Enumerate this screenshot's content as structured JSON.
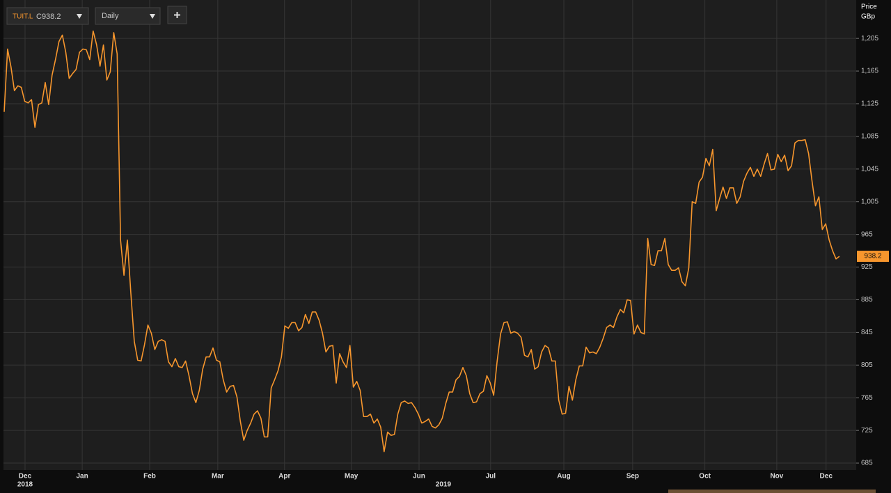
{
  "chart_data": {
    "type": "line",
    "symbol": "TUIT.L",
    "last_label": "C938.2",
    "interval": "Daily",
    "axis_title": "Price",
    "axis_unit": "GBp",
    "series": [
      {
        "name": "TUIT.L",
        "color": "#f7962d",
        "values": [
          1115,
          1192,
          1170,
          1141,
          1147,
          1145,
          1128,
          1126,
          1130,
          1096,
          1124,
          1126,
          1151,
          1124,
          1160,
          1179,
          1201,
          1209,
          1188,
          1156,
          1162,
          1167,
          1188,
          1192,
          1191,
          1179,
          1214,
          1197,
          1171,
          1197,
          1154,
          1164,
          1212,
          1186,
          958,
          915,
          958,
          894,
          834,
          811,
          810,
          830,
          854,
          844,
          824,
          834,
          836,
          834,
          809,
          803,
          813,
          803,
          802,
          810,
          792,
          770,
          759,
          774,
          800,
          815,
          815,
          826,
          811,
          809,
          787,
          772,
          779,
          780,
          766,
          736,
          713,
          725,
          734,
          745,
          749,
          740,
          717,
          717,
          777,
          787,
          798,
          815,
          853,
          850,
          857,
          857,
          847,
          851,
          867,
          856,
          870,
          870,
          860,
          844,
          821,
          828,
          829,
          783,
          819,
          809,
          802,
          829,
          778,
          785,
          774,
          742,
          742,
          745,
          734,
          739,
          729,
          699,
          723,
          719,
          720,
          745,
          759,
          761,
          758,
          759,
          753,
          745,
          734,
          736,
          739,
          730,
          728,
          732,
          740,
          758,
          772,
          772,
          787,
          791,
          802,
          792,
          770,
          759,
          760,
          770,
          773,
          792,
          783,
          768,
          809,
          843,
          857,
          858,
          844,
          846,
          844,
          839,
          817,
          815,
          824,
          800,
          803,
          821,
          829,
          826,
          810,
          810,
          762,
          745,
          746,
          779,
          762,
          787,
          804,
          804,
          827,
          820,
          821,
          819,
          827,
          838,
          851,
          854,
          851,
          864,
          873,
          869,
          885,
          884,
          843,
          854,
          845,
          843,
          960,
          928,
          927,
          945,
          945,
          960,
          928,
          921,
          921,
          924,
          907,
          902,
          924,
          1005,
          1003,
          1029,
          1035,
          1058,
          1049,
          1069,
          994,
          1009,
          1023,
          1009,
          1022,
          1022,
          1003,
          1011,
          1030,
          1040,
          1047,
          1036,
          1045,
          1036,
          1051,
          1064,
          1044,
          1045,
          1063,
          1054,
          1062,
          1043,
          1049,
          1077,
          1080,
          1080,
          1081,
          1064,
          1030,
          1000,
          1011,
          971,
          978,
          958,
          945,
          935,
          938.2
        ]
      }
    ],
    "xlim": [
      -0.2,
      248.9
    ],
    "xticks": [
      {
        "value": 6.1,
        "label": "Dec"
      },
      {
        "value": 22.8,
        "label": "Jan"
      },
      {
        "value": 42.5,
        "label": "Feb"
      },
      {
        "value": 62.4,
        "label": "Mar"
      },
      {
        "value": 81.9,
        "label": "Apr"
      },
      {
        "value": 101.4,
        "label": "May"
      },
      {
        "value": 121.2,
        "label": "Jun"
      },
      {
        "value": 142.1,
        "label": "Jul"
      },
      {
        "value": 163.5,
        "label": "Aug"
      },
      {
        "value": 183.6,
        "label": "Sep"
      },
      {
        "value": 204.7,
        "label": "Oct"
      },
      {
        "value": 225.7,
        "label": "Nov"
      },
      {
        "value": 240.1,
        "label": "Dec"
      }
    ],
    "year_labels": [
      {
        "value": 6.1,
        "label": "2018"
      },
      {
        "value": 128.3,
        "label": "2019"
      }
    ],
    "ylim": [
      676.5,
      1252
    ],
    "yticks": [
      685,
      725,
      765,
      805,
      845,
      885,
      925,
      965,
      {
        "value": 1005,
        "label": "1,005"
      },
      {
        "value": 1045,
        "label": "1,045"
      },
      {
        "value": 1085,
        "label": "1,085"
      },
      {
        "value": 1125,
        "label": "1,125"
      },
      {
        "value": 1165,
        "label": "1,165"
      },
      {
        "value": 1205,
        "label": "1,205"
      }
    ],
    "grid": true
  }
}
